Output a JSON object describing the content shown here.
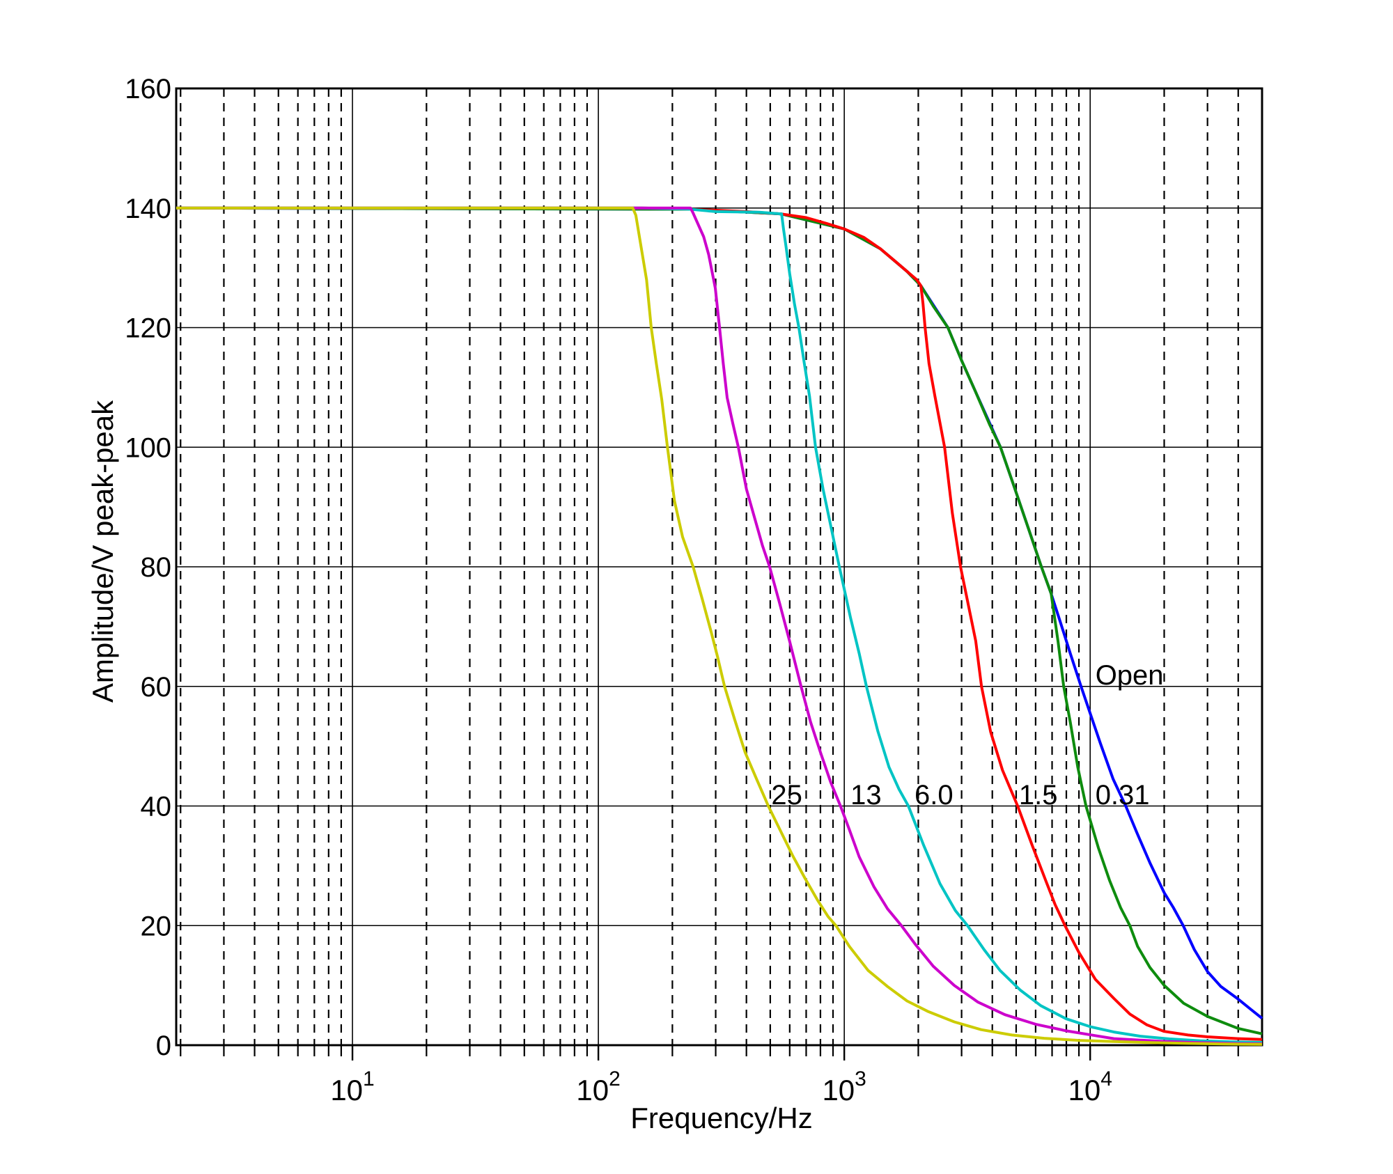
{
  "figure": {
    "background": "#ffffff",
    "style": "matlab-classic",
    "frame_color": "#000000"
  },
  "chart_data": {
    "type": "line",
    "title": "",
    "xlabel": "Frequency/Hz",
    "ylabel": "Amplitude/V peak-peak",
    "x_scale": "log",
    "x_range": [
      1.92,
      50000
    ],
    "y_range": [
      0,
      160
    ],
    "y_ticks": [
      0,
      20,
      40,
      60,
      80,
      100,
      120,
      140,
      160
    ],
    "x_major_ticks": [
      {
        "value": 10,
        "base": "10",
        "exponent": "1"
      },
      {
        "value": 100,
        "base": "10",
        "exponent": "2"
      },
      {
        "value": 1000,
        "base": "10",
        "exponent": "3"
      },
      {
        "value": 10000,
        "base": "10",
        "exponent": "4"
      }
    ],
    "grid": {
      "horizontal": "solid",
      "vertical_major": "solid",
      "vertical_minor": "dashed",
      "color": "#000000",
      "minor_subdivisions": [
        2,
        3,
        4,
        5,
        6,
        7,
        8,
        9
      ]
    },
    "legend_position": "inline-labels",
    "series": [
      {
        "name": "Open",
        "label": "Open",
        "color": "#0000FF",
        "points": [
          [
            1.92,
            140
          ],
          [
            237,
            139.8
          ],
          [
            556,
            139
          ],
          [
            1000,
            136.5
          ],
          [
            1400,
            133.2
          ],
          [
            1800,
            129.4
          ],
          [
            2049,
            127
          ],
          [
            2640,
            120
          ],
          [
            3000,
            114.5
          ],
          [
            3400,
            109.5
          ],
          [
            4320,
            100
          ],
          [
            4900,
            93.5
          ],
          [
            5600,
            86.5
          ],
          [
            6334,
            80
          ],
          [
            6940,
            75.5
          ],
          [
            7600,
            70.5
          ],
          [
            8300,
            65.5
          ],
          [
            9180,
            60
          ],
          [
            10000,
            55.5
          ],
          [
            11000,
            50.5
          ],
          [
            12400,
            44.5
          ],
          [
            13950,
            40
          ],
          [
            15500,
            35.5
          ],
          [
            17500,
            30.5
          ],
          [
            20000,
            25.5
          ],
          [
            21800,
            23
          ],
          [
            23900,
            20
          ],
          [
            26500,
            16
          ],
          [
            30000,
            12.3
          ],
          [
            34000,
            9.8
          ],
          [
            40000,
            7.7
          ],
          [
            45000,
            6
          ],
          [
            50000,
            4.5
          ]
        ]
      },
      {
        "name": "0.31",
        "label": "0.31",
        "color": "#0E8C0E",
        "points": [
          [
            1.92,
            140
          ],
          [
            237,
            139.8
          ],
          [
            556,
            139
          ],
          [
            1000,
            136.5
          ],
          [
            1400,
            133.2
          ],
          [
            1800,
            129.4
          ],
          [
            2049,
            127
          ],
          [
            2300,
            123.6
          ],
          [
            2640,
            120
          ],
          [
            3000,
            114.5
          ],
          [
            3400,
            109.5
          ],
          [
            3900,
            103.8
          ],
          [
            4320,
            100
          ],
          [
            4900,
            93.5
          ],
          [
            5600,
            86.5
          ],
          [
            6334,
            80
          ],
          [
            6940,
            75.5
          ],
          [
            7400,
            67.5
          ],
          [
            7805,
            60
          ],
          [
            8300,
            54
          ],
          [
            8900,
            46.5
          ],
          [
            9615,
            40
          ],
          [
            10800,
            33
          ],
          [
            12000,
            27.5
          ],
          [
            13300,
            23
          ],
          [
            14500,
            20
          ],
          [
            15600,
            16.5
          ],
          [
            17500,
            13
          ],
          [
            20000,
            10
          ],
          [
            24000,
            7
          ],
          [
            30000,
            4.8
          ],
          [
            40000,
            2.8
          ],
          [
            50000,
            1.9
          ]
        ]
      },
      {
        "name": "1.5",
        "label": "1.5",
        "color": "#FF0000",
        "points": [
          [
            1.92,
            140
          ],
          [
            150,
            140
          ],
          [
            237,
            139.8
          ],
          [
            400,
            139.4
          ],
          [
            556,
            139
          ],
          [
            700,
            138.4
          ],
          [
            850,
            137.4
          ],
          [
            1000,
            136.5
          ],
          [
            1200,
            135.1
          ],
          [
            1400,
            133.2
          ],
          [
            1600,
            131.2
          ],
          [
            1800,
            129.4
          ],
          [
            1972,
            128
          ],
          [
            2049,
            127
          ],
          [
            2090,
            124
          ],
          [
            2131,
            120
          ],
          [
            2210,
            114
          ],
          [
            2335,
            108.6
          ],
          [
            2558,
            100
          ],
          [
            2750,
            89
          ],
          [
            2970,
            80
          ],
          [
            3200,
            73.5
          ],
          [
            3424,
            67.6
          ],
          [
            3616,
            60
          ],
          [
            3936,
            52.4
          ],
          [
            4400,
            46
          ],
          [
            5070,
            40
          ],
          [
            5800,
            33.5
          ],
          [
            6600,
            27.5
          ],
          [
            7200,
            23.5
          ],
          [
            7900,
            20
          ],
          [
            9000,
            15.5
          ],
          [
            10500,
            11
          ],
          [
            12500,
            7.8
          ],
          [
            14500,
            5.2
          ],
          [
            17000,
            3.4
          ],
          [
            20000,
            2.3
          ],
          [
            25000,
            1.7
          ],
          [
            30000,
            1.4
          ],
          [
            40000,
            1.1
          ],
          [
            50000,
            0.95
          ]
        ]
      },
      {
        "name": "6.0",
        "label": "6.0",
        "color": "#00C4C4",
        "points": [
          [
            1.92,
            140
          ],
          [
            150,
            140
          ],
          [
            237,
            139.8
          ],
          [
            300,
            139.4
          ],
          [
            450,
            139.3
          ],
          [
            556,
            139
          ],
          [
            566,
            136.5
          ],
          [
            580,
            133.5
          ],
          [
            600,
            129
          ],
          [
            627,
            124
          ],
          [
            654,
            120
          ],
          [
            688,
            114
          ],
          [
            722,
            108.6
          ],
          [
            764,
            100
          ],
          [
            820,
            93
          ],
          [
            890,
            86
          ],
          [
            955,
            80
          ],
          [
            1060,
            71.5
          ],
          [
            1150,
            65.5
          ],
          [
            1231,
            60
          ],
          [
            1370,
            52.5
          ],
          [
            1520,
            46.5
          ],
          [
            1670,
            42.8
          ],
          [
            1823,
            40
          ],
          [
            2100,
            33.5
          ],
          [
            2450,
            27
          ],
          [
            2830,
            22.5
          ],
          [
            3170,
            20
          ],
          [
            3700,
            16
          ],
          [
            4300,
            12.5
          ],
          [
            5200,
            9.2
          ],
          [
            6300,
            6.6
          ],
          [
            8000,
            4.4
          ],
          [
            10000,
            3.1
          ],
          [
            12500,
            2.2
          ],
          [
            16000,
            1.5
          ],
          [
            21000,
            1.05
          ],
          [
            28000,
            0.75
          ],
          [
            38000,
            0.55
          ],
          [
            50000,
            0.46
          ]
        ]
      },
      {
        "name": "13",
        "label": "13",
        "color": "#CC00CC",
        "points": [
          [
            1.92,
            140
          ],
          [
            120,
            140
          ],
          [
            200,
            140
          ],
          [
            237,
            140
          ],
          [
            242,
            139.3
          ],
          [
            268,
            135.2
          ],
          [
            281,
            132.2
          ],
          [
            299,
            126.6
          ],
          [
            311,
            120
          ],
          [
            322,
            114
          ],
          [
            334,
            108.3
          ],
          [
            352,
            104
          ],
          [
            371,
            100
          ],
          [
            400,
            93
          ],
          [
            440,
            87
          ],
          [
            465,
            83.5
          ],
          [
            497,
            80
          ],
          [
            545,
            74
          ],
          [
            600,
            67.5
          ],
          [
            667,
            60
          ],
          [
            730,
            54
          ],
          [
            800,
            49
          ],
          [
            880,
            44
          ],
          [
            965,
            40
          ],
          [
            1050,
            36
          ],
          [
            1150,
            31.5
          ],
          [
            1320,
            26.5
          ],
          [
            1500,
            22.8
          ],
          [
            1707,
            20
          ],
          [
            1950,
            16.8
          ],
          [
            2300,
            13.2
          ],
          [
            2800,
            10
          ],
          [
            3500,
            7.2
          ],
          [
            4500,
            5.1
          ],
          [
            6000,
            3.5
          ],
          [
            8000,
            2.4
          ],
          [
            10500,
            1.6
          ],
          [
            12500,
            1.1
          ],
          [
            16000,
            0.85
          ],
          [
            20000,
            0.63
          ],
          [
            28000,
            0.42
          ],
          [
            40000,
            0.28
          ],
          [
            50000,
            0.23
          ]
        ]
      },
      {
        "name": "25",
        "label": "25",
        "color": "#CCCC00",
        "points": [
          [
            1.92,
            140
          ],
          [
            60,
            140
          ],
          [
            120,
            140
          ],
          [
            138,
            140
          ],
          [
            142,
            138.8
          ],
          [
            152,
            131.5
          ],
          [
            157,
            128
          ],
          [
            164,
            120
          ],
          [
            172,
            114
          ],
          [
            181,
            108
          ],
          [
            191,
            100
          ],
          [
            204,
            91
          ],
          [
            220,
            85
          ],
          [
            243,
            80
          ],
          [
            265,
            74.5
          ],
          [
            288,
            69
          ],
          [
            305,
            65
          ],
          [
            326,
            60
          ],
          [
            358,
            54.5
          ],
          [
            395,
            49
          ],
          [
            440,
            44.5
          ],
          [
            491,
            40
          ],
          [
            548,
            36
          ],
          [
            615,
            31.8
          ],
          [
            690,
            28
          ],
          [
            780,
            24.2
          ],
          [
            860,
            21.5
          ],
          [
            925,
            20
          ],
          [
            1050,
            16.5
          ],
          [
            1250,
            12.5
          ],
          [
            1500,
            9.8
          ],
          [
            1800,
            7.4
          ],
          [
            2200,
            5.6
          ],
          [
            2800,
            3.9
          ],
          [
            3600,
            2.6
          ],
          [
            4800,
            1.7
          ],
          [
            6500,
            1.15
          ],
          [
            9000,
            0.8
          ],
          [
            12500,
            0.6
          ],
          [
            17000,
            0.45
          ],
          [
            25000,
            0.3
          ],
          [
            35000,
            0.2
          ],
          [
            50000,
            0.15
          ]
        ]
      }
    ],
    "annotations": [
      {
        "text": "25",
        "x_hz": 505,
        "y_v": 40.3
      },
      {
        "text": "13",
        "x_hz": 1060,
        "y_v": 40.3
      },
      {
        "text": "6.0",
        "x_hz": 1930,
        "y_v": 40.3
      },
      {
        "text": "1.5",
        "x_hz": 5130,
        "y_v": 40.3
      },
      {
        "text": "0.31",
        "x_hz": 10500,
        "y_v": 40.3
      },
      {
        "text": "Open",
        "x_hz": 10500,
        "y_v": 60.3
      }
    ]
  }
}
